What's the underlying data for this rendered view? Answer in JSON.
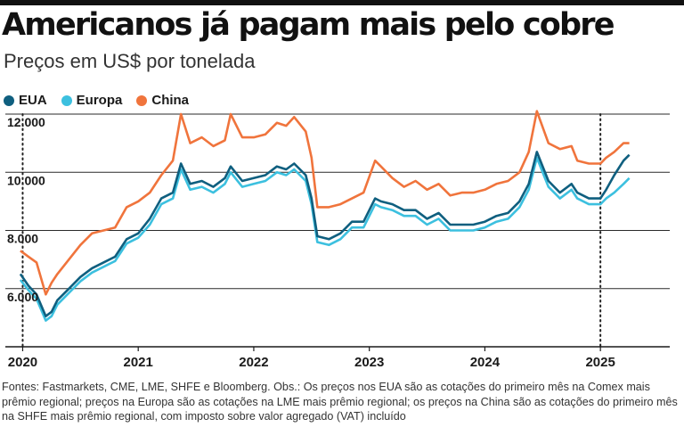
{
  "title": "Americanos já pagam mais pelo cobre",
  "subtitle": "Preços em US$ por tonelada",
  "legend": [
    {
      "label": "EUA",
      "color": "#0f5f7f"
    },
    {
      "label": "Europa",
      "color": "#3cc0df"
    },
    {
      "label": "China",
      "color": "#f0743c"
    }
  ],
  "note": "Fontes: Fastmarkets, CME, LME, SHFE e Bloomberg. Obs.: Os preços nos EUA são as cotações do primeiro mês na Comex mais prêmio regional; preços na Europa são as cotações na LME mais prêmio regional; os preços na China são as cotações do primeiro mês na SHFE mais prêmio regional, com imposto sobre valor agregado (VAT) incluído",
  "chart_data": {
    "type": "line",
    "title": "Americanos já pagam mais pelo cobre",
    "ylabel": "Preços em US$ por tonelada",
    "xlabel": "",
    "ylim": [
      4000,
      12000
    ],
    "yticks": [
      6000,
      8000,
      10000,
      12000
    ],
    "ytick_labels": [
      "6.000",
      "8.000",
      "10.000",
      "12.000"
    ],
    "xlim": [
      2019.85,
      2025.6
    ],
    "xticks": [
      2020,
      2021,
      2022,
      2023,
      2024,
      2025
    ],
    "xtick_labels": [
      "2020",
      "2021",
      "2022",
      "2023",
      "2024",
      "2025"
    ],
    "markers": [
      2020.0,
      2025.0
    ],
    "series": [
      {
        "name": "EUA",
        "color": "#0f5f7f",
        "x": [
          2019.98,
          2020.05,
          2020.12,
          2020.2,
          2020.25,
          2020.3,
          2020.4,
          2020.5,
          2020.6,
          2020.7,
          2020.8,
          2020.9,
          2021.0,
          2021.1,
          2021.2,
          2021.3,
          2021.37,
          2021.45,
          2021.55,
          2021.65,
          2021.75,
          2021.8,
          2021.9,
          2022.0,
          2022.1,
          2022.2,
          2022.28,
          2022.35,
          2022.45,
          2022.5,
          2022.55,
          2022.65,
          2022.75,
          2022.85,
          2022.95,
          2023.05,
          2023.1,
          2023.2,
          2023.3,
          2023.4,
          2023.5,
          2023.6,
          2023.7,
          2023.8,
          2023.9,
          2024.0,
          2024.1,
          2024.2,
          2024.3,
          2024.38,
          2024.45,
          2024.55,
          2024.65,
          2024.75,
          2024.8,
          2024.9,
          2025.0,
          2025.05,
          2025.12,
          2025.2,
          2025.25
        ],
        "y": [
          6500,
          6100,
          5800,
          5050,
          5200,
          5600,
          6000,
          6400,
          6700,
          6900,
          7100,
          7700,
          7900,
          8400,
          9100,
          9300,
          10300,
          9600,
          9700,
          9500,
          9800,
          10200,
          9700,
          9800,
          9900,
          10200,
          10100,
          10300,
          9900,
          9100,
          7800,
          7700,
          7900,
          8300,
          8300,
          9100,
          9000,
          8900,
          8700,
          8700,
          8400,
          8600,
          8200,
          8200,
          8200,
          8300,
          8500,
          8600,
          9000,
          9600,
          10700,
          9700,
          9300,
          9600,
          9300,
          9100,
          9100,
          9400,
          9900,
          10400,
          10600
        ]
      },
      {
        "name": "Europa",
        "color": "#3cc0df",
        "x": [
          2019.98,
          2020.05,
          2020.12,
          2020.2,
          2020.25,
          2020.3,
          2020.4,
          2020.5,
          2020.6,
          2020.7,
          2020.8,
          2020.9,
          2021.0,
          2021.1,
          2021.2,
          2021.3,
          2021.37,
          2021.45,
          2021.55,
          2021.65,
          2021.75,
          2021.8,
          2021.9,
          2022.0,
          2022.1,
          2022.2,
          2022.28,
          2022.35,
          2022.45,
          2022.5,
          2022.55,
          2022.65,
          2022.75,
          2022.85,
          2022.95,
          2023.05,
          2023.1,
          2023.2,
          2023.3,
          2023.4,
          2023.5,
          2023.6,
          2023.7,
          2023.8,
          2023.9,
          2024.0,
          2024.1,
          2024.2,
          2024.3,
          2024.38,
          2024.45,
          2024.55,
          2024.65,
          2024.75,
          2024.8,
          2024.9,
          2025.0,
          2025.05,
          2025.12,
          2025.2,
          2025.25
        ],
        "y": [
          6300,
          5950,
          5650,
          4900,
          5050,
          5450,
          5850,
          6250,
          6550,
          6750,
          6950,
          7550,
          7750,
          8200,
          8900,
          9100,
          10100,
          9400,
          9500,
          9300,
          9600,
          10000,
          9500,
          9600,
          9700,
          10000,
          9900,
          10100,
          9700,
          8900,
          7600,
          7500,
          7700,
          8100,
          8100,
          8900,
          8800,
          8700,
          8500,
          8500,
          8200,
          8400,
          8000,
          8000,
          8000,
          8100,
          8300,
          8400,
          8800,
          9400,
          10500,
          9500,
          9100,
          9400,
          9100,
          8900,
          8900,
          9100,
          9300,
          9600,
          9800
        ]
      },
      {
        "name": "China",
        "color": "#f0743c",
        "x": [
          2019.98,
          2020.05,
          2020.12,
          2020.2,
          2020.25,
          2020.3,
          2020.4,
          2020.5,
          2020.6,
          2020.7,
          2020.8,
          2020.9,
          2021.0,
          2021.1,
          2021.2,
          2021.3,
          2021.37,
          2021.45,
          2021.55,
          2021.65,
          2021.75,
          2021.8,
          2021.9,
          2022.0,
          2022.1,
          2022.2,
          2022.28,
          2022.35,
          2022.45,
          2022.5,
          2022.55,
          2022.65,
          2022.75,
          2022.85,
          2022.95,
          2023.05,
          2023.1,
          2023.2,
          2023.3,
          2023.4,
          2023.5,
          2023.6,
          2023.7,
          2023.8,
          2023.9,
          2024.0,
          2024.1,
          2024.2,
          2024.3,
          2024.38,
          2024.45,
          2024.55,
          2024.65,
          2024.75,
          2024.8,
          2024.9,
          2025.0,
          2025.05,
          2025.12,
          2025.2,
          2025.25
        ],
        "y": [
          7300,
          7100,
          6900,
          5800,
          6200,
          6500,
          7000,
          7500,
          7900,
          8000,
          8100,
          8800,
          9000,
          9300,
          9900,
          10400,
          12000,
          11000,
          11200,
          10900,
          11100,
          12000,
          11200,
          11200,
          11300,
          11700,
          11600,
          11900,
          11400,
          10500,
          8800,
          8800,
          8900,
          9100,
          9300,
          10400,
          10200,
          9800,
          9500,
          9700,
          9400,
          9600,
          9200,
          9300,
          9300,
          9400,
          9600,
          9700,
          10000,
          10700,
          12100,
          11000,
          10800,
          10900,
          10400,
          10300,
          10300,
          10500,
          10700,
          11000,
          11000
        ]
      }
    ]
  }
}
